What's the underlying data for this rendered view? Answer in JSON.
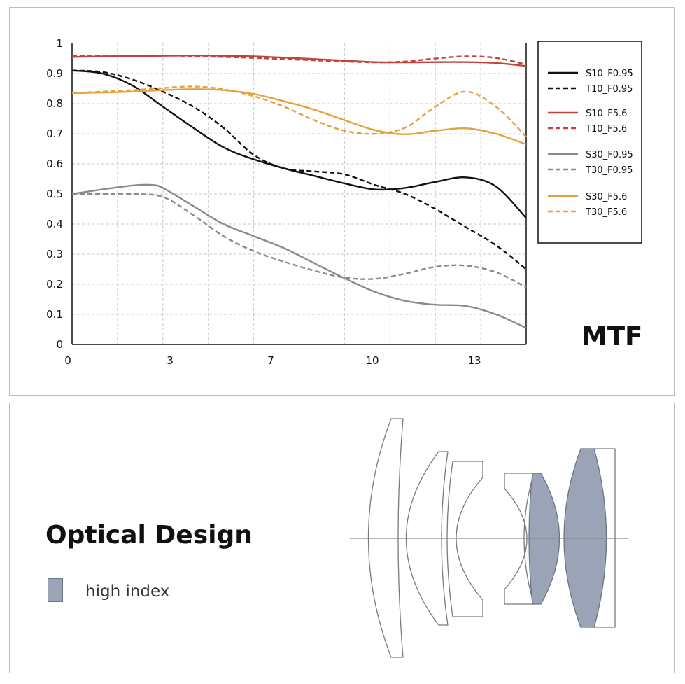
{
  "chart_data": {
    "type": "line",
    "title": "MTF",
    "xlabel": "",
    "ylabel": "",
    "xlim": [
      0,
      15
    ],
    "ylim": [
      0,
      1
    ],
    "x_ticks": [
      "0",
      "3",
      "7",
      "10",
      "13"
    ],
    "y_ticks": [
      "0",
      "0.1",
      "0.2",
      "0.3",
      "0.4",
      "0.5",
      "0.6",
      "0.7",
      "0.8",
      "0.9",
      "1"
    ],
    "grid": true,
    "legend_position": "right",
    "series": [
      {
        "name": "S10_F0.95",
        "color": "#111111",
        "dash": false,
        "x": [
          0,
          1,
          2,
          3,
          4,
          5,
          6,
          7,
          8,
          9,
          10,
          11,
          12,
          13,
          14,
          15
        ],
        "y": [
          0.91,
          0.9,
          0.86,
          0.79,
          0.72,
          0.655,
          0.615,
          0.585,
          0.56,
          0.535,
          0.515,
          0.52,
          0.54,
          0.555,
          0.525,
          0.42
        ]
      },
      {
        "name": "T10_F0.95",
        "color": "#111111",
        "dash": true,
        "x": [
          0,
          1,
          2,
          3,
          4,
          5,
          6,
          7,
          8,
          9,
          10,
          11,
          12,
          13,
          14,
          15
        ],
        "y": [
          0.91,
          0.905,
          0.88,
          0.84,
          0.79,
          0.72,
          0.63,
          0.585,
          0.575,
          0.565,
          0.53,
          0.5,
          0.45,
          0.39,
          0.33,
          0.25
        ]
      },
      {
        "name": "S10_F5.6",
        "color": "#c0443c",
        "dash": false,
        "x": [
          0,
          1,
          2,
          3,
          4,
          5,
          6,
          7,
          8,
          9,
          10,
          11,
          12,
          13,
          14,
          15
        ],
        "y": [
          0.955,
          0.957,
          0.958,
          0.959,
          0.96,
          0.959,
          0.957,
          0.953,
          0.948,
          0.943,
          0.938,
          0.937,
          0.938,
          0.938,
          0.935,
          0.925
        ]
      },
      {
        "name": "T10_F5.6",
        "color": "#c0443c",
        "dash": true,
        "x": [
          0,
          1,
          2,
          3,
          4,
          5,
          6,
          7,
          8,
          9,
          10,
          11,
          12,
          13,
          14,
          15
        ],
        "y": [
          0.96,
          0.96,
          0.96,
          0.96,
          0.958,
          0.955,
          0.952,
          0.948,
          0.944,
          0.94,
          0.937,
          0.94,
          0.95,
          0.957,
          0.952,
          0.93
        ]
      },
      {
        "name": "S30_F0.95",
        "color": "#8a8a8a",
        "dash": false,
        "x": [
          0,
          1,
          2,
          2.6,
          3,
          4,
          5,
          6,
          7,
          8,
          9,
          10,
          11,
          12,
          13,
          14,
          15
        ],
        "y": [
          0.5,
          0.515,
          0.528,
          0.53,
          0.52,
          0.46,
          0.4,
          0.36,
          0.32,
          0.27,
          0.22,
          0.175,
          0.145,
          0.132,
          0.128,
          0.1,
          0.055
        ]
      },
      {
        "name": "T30_F0.95",
        "color": "#8a8a8a",
        "dash": true,
        "x": [
          0,
          1,
          2,
          3,
          4,
          5,
          6,
          7,
          8,
          9,
          10,
          11,
          12,
          13,
          14,
          15
        ],
        "y": [
          0.5,
          0.5,
          0.5,
          0.49,
          0.43,
          0.36,
          0.31,
          0.275,
          0.245,
          0.222,
          0.218,
          0.235,
          0.258,
          0.262,
          0.24,
          0.19
        ]
      },
      {
        "name": "S30_F5.6",
        "color": "#e4a23e",
        "dash": false,
        "x": [
          0,
          1,
          2,
          3,
          4,
          5,
          6,
          7,
          8,
          9,
          10,
          11,
          12,
          13,
          14,
          15
        ],
        "y": [
          0.835,
          0.837,
          0.84,
          0.845,
          0.848,
          0.845,
          0.832,
          0.808,
          0.78,
          0.745,
          0.712,
          0.698,
          0.71,
          0.718,
          0.7,
          0.665
        ]
      },
      {
        "name": "T30_F5.6",
        "color": "#e4a23e",
        "dash": true,
        "x": [
          0,
          1,
          2,
          3,
          4,
          5,
          6,
          7,
          8,
          9,
          10,
          11,
          12,
          13,
          14,
          15
        ],
        "y": [
          0.835,
          0.84,
          0.845,
          0.852,
          0.857,
          0.848,
          0.825,
          0.79,
          0.745,
          0.71,
          0.7,
          0.72,
          0.79,
          0.84,
          0.79,
          0.69
        ]
      }
    ]
  },
  "optical_design": {
    "title": "Optical Design",
    "legend_label": "high index",
    "high_index_color": "#9aa4b6"
  }
}
